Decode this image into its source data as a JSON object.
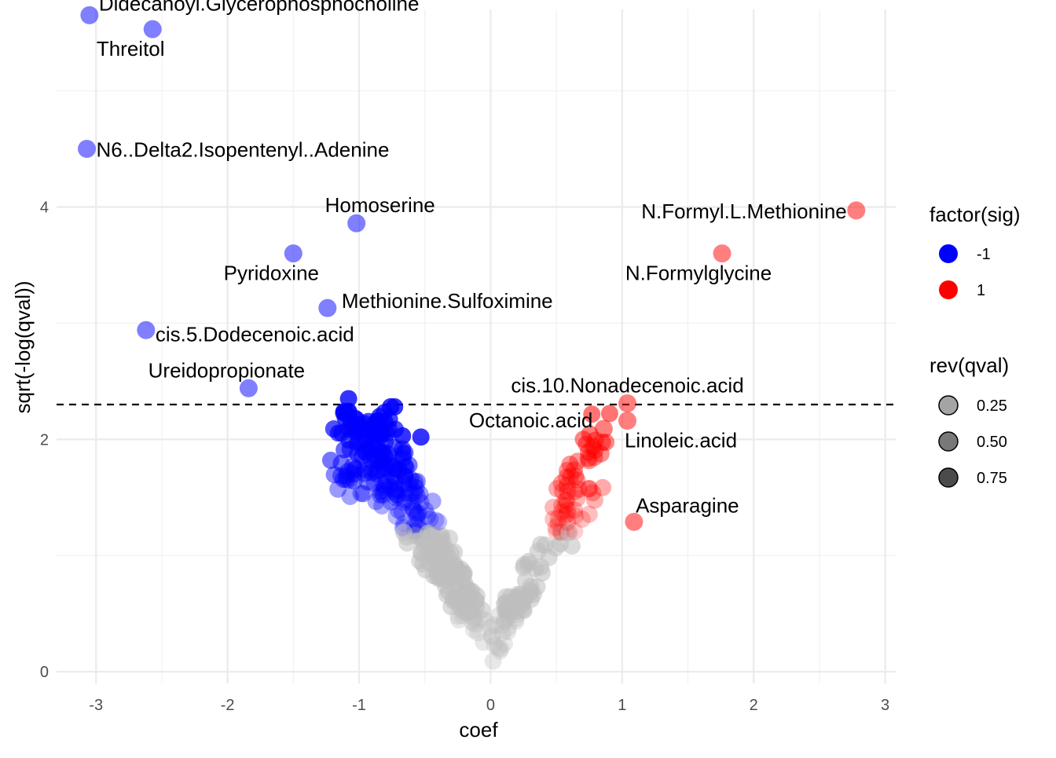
{
  "chart_data": {
    "type": "scatter",
    "xlabel": "coef",
    "ylabel": "sqrt(-log(qval))",
    "xlim": [
      -3.3,
      3.08
    ],
    "ylim": [
      -0.1,
      5.7
    ],
    "x_ticks": [
      "-3",
      "-2",
      "-1",
      "0",
      "1",
      "2",
      "3"
    ],
    "x_tick_values": [
      -3,
      -2,
      -1,
      0,
      1,
      2,
      3
    ],
    "y_ticks": [
      "0",
      "2",
      "4"
    ],
    "y_tick_values": [
      0,
      2,
      4
    ],
    "grid": true,
    "threshold_line": {
      "y": 2.3,
      "style": "dashed"
    },
    "colors": {
      "low": "#0000ff",
      "high": "#ff0000",
      "ns": "#bebebe"
    },
    "labeled_points": [
      {
        "label": "Didecanoyl.Glycerophosphocholine",
        "x": -3.05,
        "y": 5.65,
        "sig": -1
      },
      {
        "label": "Threitol",
        "x": -2.57,
        "y": 5.53,
        "sig": -1
      },
      {
        "label": "N6..Delta2.Isopentenyl..Adenine",
        "x": -3.07,
        "y": 4.5,
        "sig": -1
      },
      {
        "label": "Homoserine",
        "x": -1.02,
        "y": 3.86,
        "sig": -1
      },
      {
        "label": "Pyridoxine",
        "x": -1.5,
        "y": 3.6,
        "sig": -1
      },
      {
        "label": "Methionine.Sulfoximine",
        "x": -1.24,
        "y": 3.13,
        "sig": -1
      },
      {
        "label": "cis.5.Dodecenoic.acid",
        "x": -2.62,
        "y": 2.94,
        "sig": -1
      },
      {
        "label": "Ureidopropionate",
        "x": -1.84,
        "y": 2.44,
        "sig": -1
      },
      {
        "label": "N.Formyl.L.Methionine",
        "x": 2.78,
        "y": 3.97,
        "sig": 1
      },
      {
        "label": "N.Formylglycine",
        "x": 1.76,
        "y": 3.6,
        "sig": 1
      },
      {
        "label": "cis.10.Nonadecenoic.acid",
        "x": 1.04,
        "y": 2.31,
        "sig": 1
      },
      {
        "label": "Octanoic.acid",
        "x": 0.86,
        "y": 2.09,
        "sig": 1
      },
      {
        "label": "Linoleic.acid",
        "x": 1.04,
        "y": 2.16,
        "sig": 1
      },
      {
        "label": "Asparagine",
        "x": 1.09,
        "y": 1.29,
        "sig": 1
      }
    ],
    "legend_sig": {
      "title": "factor(sig)",
      "entries": [
        {
          "label": "-1",
          "color": "#0000ff"
        },
        {
          "label": "1",
          "color": "#ff0000"
        }
      ]
    },
    "legend_alpha": {
      "title": "rev(qval)",
      "entries": [
        {
          "label": "0.25",
          "alpha": 0.25
        },
        {
          "label": "0.50",
          "alpha": 0.5
        },
        {
          "label": "0.75",
          "alpha": 0.75
        }
      ]
    }
  }
}
